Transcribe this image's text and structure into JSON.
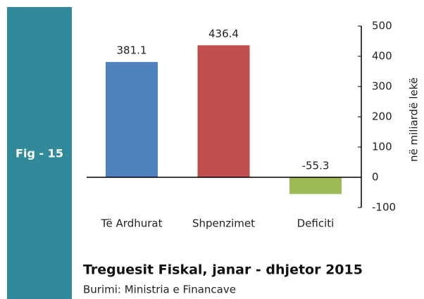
{
  "sidebar_label": "Fig - 15",
  "chart_data": {
    "type": "bar",
    "title": "Treguesit Fiskal, janar - dhjetor 2015",
    "source": "Burimi: Ministria e Financave",
    "y_axis_label": "në miliardë lekë",
    "categories": [
      "Të Ardhurat",
      "Shpenzimet",
      "Deficiti"
    ],
    "values": [
      381.1,
      436.4,
      -55.3
    ],
    "colors": [
      "#4f81bd",
      "#c0504d",
      "#9bbb59"
    ],
    "ylim": [
      -100,
      500
    ],
    "yticks": [
      -100,
      0,
      100,
      200,
      300,
      400,
      500
    ],
    "y_axis_side": "right"
  }
}
